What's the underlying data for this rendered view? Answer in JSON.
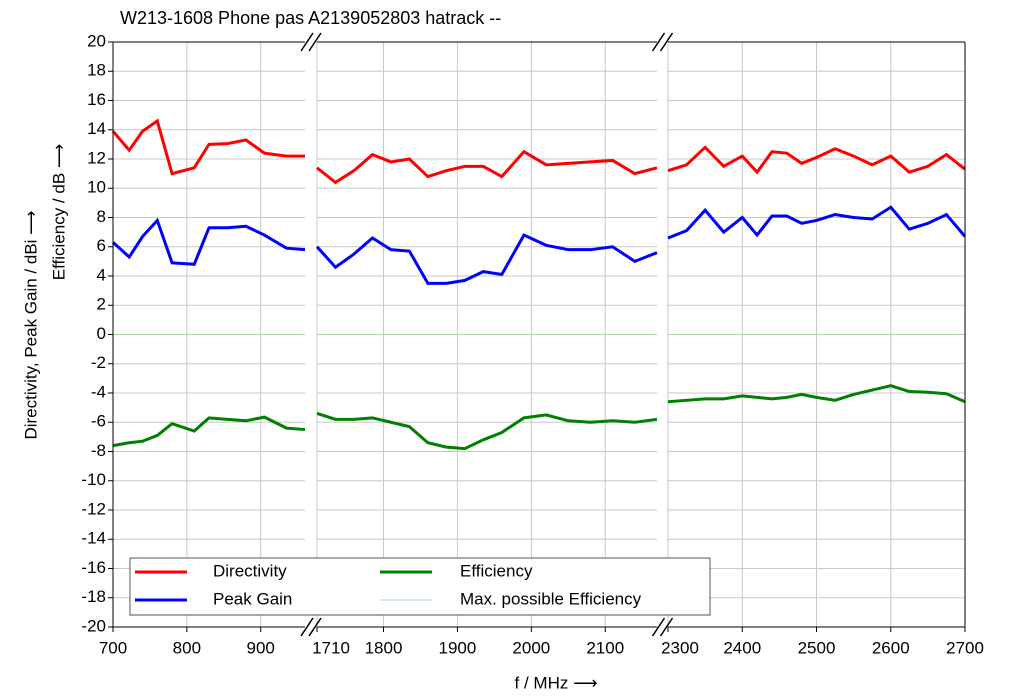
{
  "chart_data": [
    {
      "type": "line",
      "title": "W213-1608 Phone pas A2139052803 hatrack --",
      "xlabel": "f / MHz ⟶",
      "ylabel": [
        "Directivity, Peak Gain / dBi ⟶",
        "Efficiency / dB ⟶"
      ],
      "ylim": [
        -20,
        20
      ],
      "yticks": [
        -20,
        -18,
        -16,
        -14,
        -12,
        -10,
        -8,
        -6,
        -4,
        -2,
        0,
        2,
        4,
        6,
        8,
        10,
        12,
        14,
        16,
        18,
        20
      ],
      "grid": true,
      "legend": "lower left",
      "xlim": [
        700,
        960
      ],
      "xticks": [
        700,
        800,
        900
      ],
      "x": [
        700,
        722,
        740,
        760,
        780,
        810,
        830,
        855,
        880,
        905,
        935,
        960
      ],
      "series": [
        {
          "name": "Directivity",
          "color": "#ff0000",
          "values": [
            13.9,
            12.6,
            13.9,
            14.6,
            11.0,
            11.4,
            13.0,
            13.05,
            13.3,
            12.4,
            12.2,
            12.2
          ]
        },
        {
          "name": "Peak Gain",
          "color": "#0000ff",
          "values": [
            6.3,
            5.3,
            6.7,
            7.8,
            4.9,
            4.8,
            7.3,
            7.3,
            7.4,
            6.8,
            5.9,
            5.8
          ]
        },
        {
          "name": "Efficiency",
          "color": "#008000",
          "values": [
            -7.6,
            -7.4,
            -7.3,
            -6.9,
            -6.1,
            -6.6,
            -5.7,
            -5.8,
            -5.9,
            -5.65,
            -6.4,
            -6.5
          ]
        },
        {
          "name": "Max. possible Efficiency",
          "color": "#a8d8a8",
          "values": [
            0,
            0,
            0,
            0,
            0,
            0,
            0,
            0,
            0,
            0,
            0,
            0
          ]
        }
      ]
    },
    {
      "type": "line",
      "xlim": [
        1710,
        2170
      ],
      "xticks": [
        1710,
        1800,
        1900,
        2000,
        2100
      ],
      "x": [
        1710,
        1735,
        1760,
        1785,
        1810,
        1835,
        1860,
        1885,
        1910,
        1935,
        1960,
        1990,
        2020,
        2050,
        2080,
        2110,
        2140,
        2170
      ],
      "series": [
        {
          "color": "#ff0000",
          "values": [
            11.4,
            10.4,
            11.2,
            12.3,
            11.8,
            12.0,
            10.8,
            11.2,
            11.5,
            11.5,
            10.8,
            12.5,
            11.6,
            11.7,
            11.8,
            11.9,
            11.0,
            11.4
          ]
        },
        {
          "color": "#0000ff",
          "values": [
            6.0,
            4.6,
            5.5,
            6.6,
            5.8,
            5.7,
            3.5,
            3.5,
            3.7,
            4.3,
            4.1,
            6.8,
            6.1,
            5.8,
            5.8,
            6.0,
            5.0,
            5.6
          ]
        },
        {
          "color": "#008000",
          "values": [
            -5.4,
            -5.8,
            -5.8,
            -5.7,
            -6.0,
            -6.3,
            -7.4,
            -7.7,
            -7.8,
            -7.2,
            -6.7,
            -5.7,
            -5.5,
            -5.9,
            -6.0,
            -5.9,
            -6.0,
            -5.8
          ]
        },
        {
          "color": "#a8d8a8",
          "values": [
            0,
            0,
            0,
            0,
            0,
            0,
            0,
            0,
            0,
            0,
            0,
            0,
            0,
            0,
            0,
            0,
            0,
            0
          ]
        }
      ]
    },
    {
      "type": "line",
      "xlim": [
        2300,
        2700
      ],
      "xticks": [
        2300,
        2400,
        2500,
        2600,
        2700
      ],
      "x": [
        2300,
        2325,
        2350,
        2375,
        2400,
        2420,
        2440,
        2460,
        2480,
        2500,
        2525,
        2550,
        2575,
        2600,
        2625,
        2650,
        2675,
        2700
      ],
      "series": [
        {
          "color": "#ff0000",
          "values": [
            11.2,
            11.6,
            12.8,
            11.5,
            12.2,
            11.1,
            12.5,
            12.4,
            11.7,
            12.1,
            12.7,
            12.2,
            11.6,
            12.2,
            11.1,
            11.5,
            12.3,
            11.3
          ]
        },
        {
          "color": "#0000ff",
          "values": [
            6.6,
            7.1,
            8.5,
            7.0,
            8.0,
            6.8,
            8.1,
            8.1,
            7.6,
            7.8,
            8.2,
            8.0,
            7.9,
            8.7,
            7.2,
            7.6,
            8.2,
            6.7
          ]
        },
        {
          "color": "#008000",
          "values": [
            -4.6,
            -4.5,
            -4.4,
            -4.4,
            -4.2,
            -4.3,
            -4.4,
            -4.3,
            -4.1,
            -4.3,
            -4.5,
            -4.1,
            -3.8,
            -3.5,
            -3.9,
            -3.95,
            -4.05,
            -4.6
          ]
        },
        {
          "color": "#a8d8a8",
          "values": [
            0,
            0,
            0,
            0,
            0,
            0,
            0,
            0,
            0,
            0,
            0,
            0,
            0,
            0,
            0,
            0,
            0,
            0
          ]
        }
      ]
    }
  ]
}
